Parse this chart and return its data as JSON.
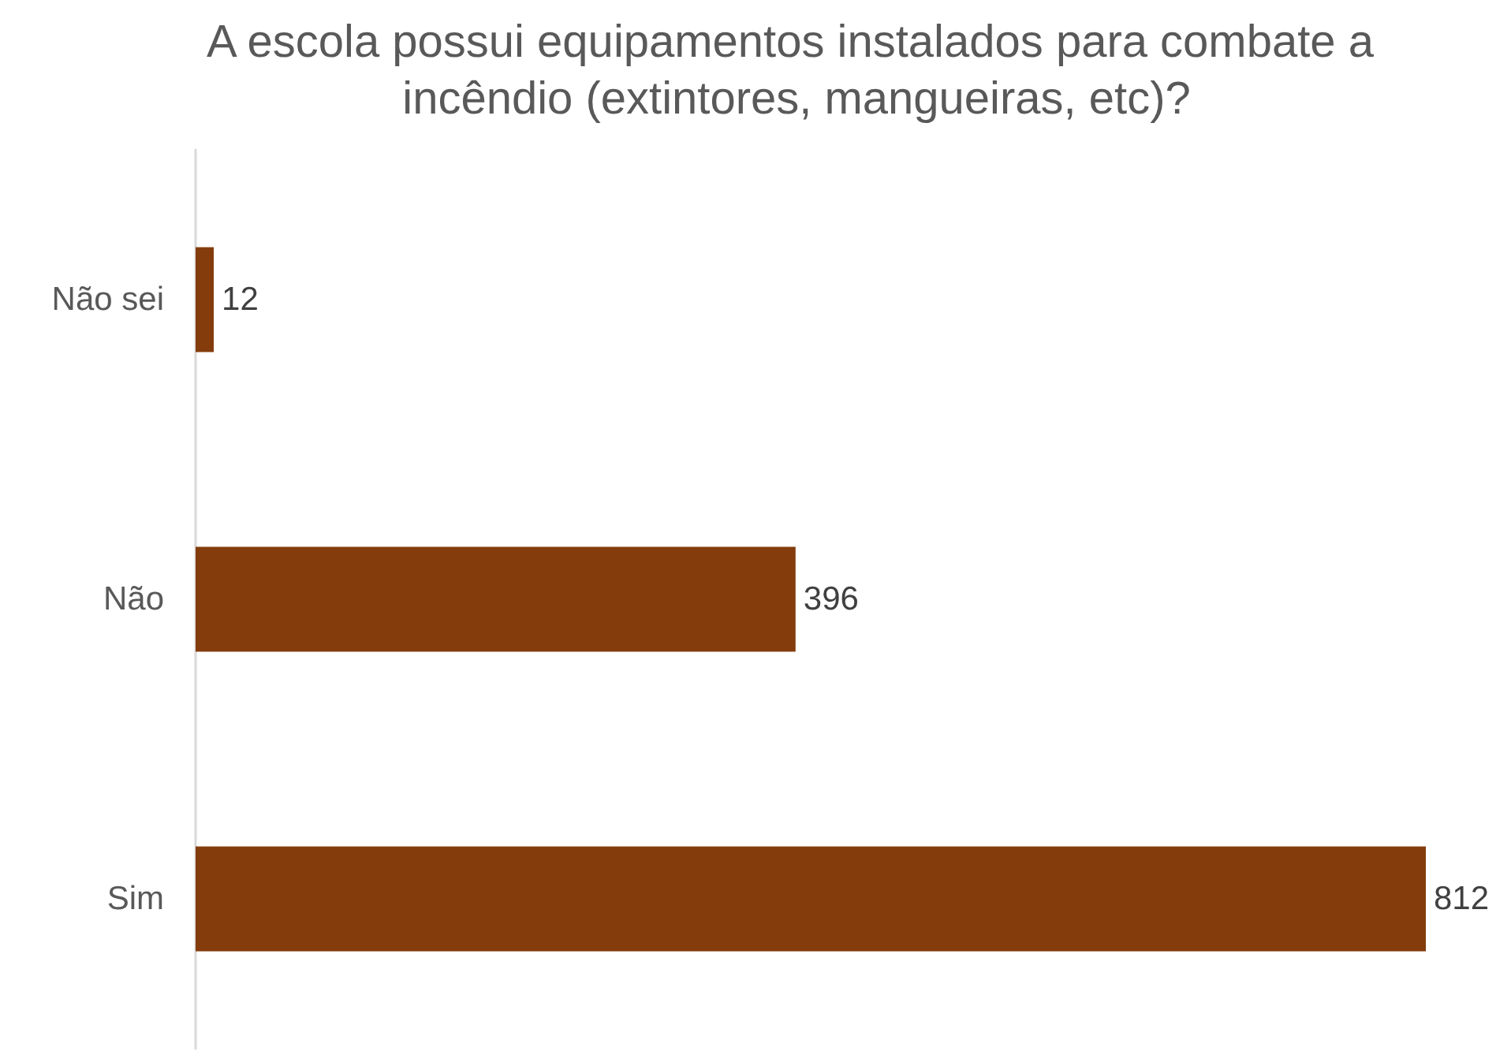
{
  "chart_data": {
    "type": "bar",
    "orientation": "horizontal",
    "title": "A escola possui equipamentos instalados para combate a incêndio (extintores, mangueiras, etc)?",
    "categories": [
      "Não sei",
      "Não",
      "Sim"
    ],
    "values": [
      12,
      396,
      812
    ],
    "color": "#843c0c",
    "data_labels": true
  }
}
